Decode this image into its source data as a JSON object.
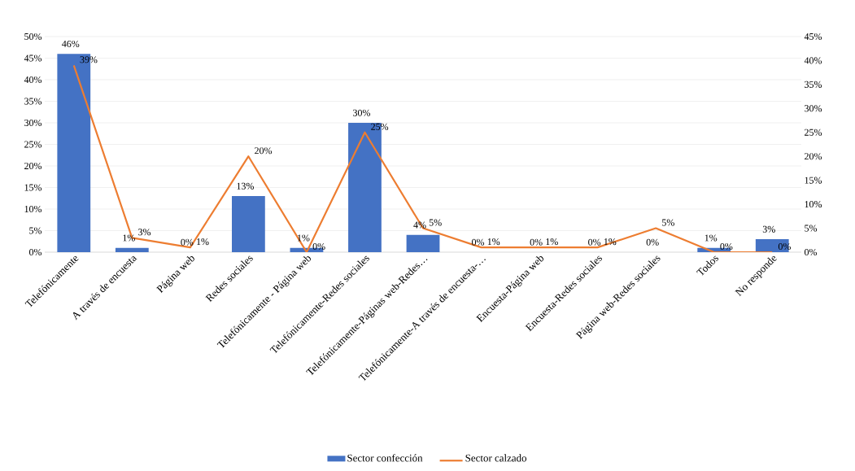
{
  "chart_data": {
    "type": "bar",
    "categories": [
      "Telefónicamente",
      "A través de encuesta",
      "Página web",
      "Redes sociales",
      "Telefónicamente - Página web",
      "Telefónicamente-Redes sociales",
      "Telefónicamente-Páginas web-Redes…",
      "Telefónicamente-A través de encuesta-…",
      "Encuesta-Página web",
      "Encuesta-Redes sociales",
      "Página web-Redes sociales",
      "Todos",
      "No responde"
    ],
    "series": [
      {
        "name": "Sector confección",
        "color": "#4472c4",
        "values": [
          46,
          1,
          0,
          13,
          1,
          30,
          4,
          0,
          0,
          0,
          0,
          1,
          3
        ],
        "value_labels": [
          "46%",
          "1%",
          "0%",
          "13%",
          "1%",
          "30%",
          "4%",
          "0%",
          "0%",
          "0%",
          "0%",
          "1%",
          "3%"
        ]
      },
      {
        "name": "Sector calzado",
        "type": "line",
        "axis": "y2",
        "color": "#ed7d31",
        "values": [
          39,
          3,
          1,
          20,
          0,
          25,
          5,
          1,
          1,
          1,
          5,
          0,
          0
        ],
        "value_labels": [
          "39%",
          "3%",
          "1%",
          "20%",
          "0%",
          "25%",
          "5%",
          "1%",
          "1%",
          "1%",
          "5%",
          "0%",
          "0%"
        ]
      }
    ],
    "ylim": [
      0,
      50
    ],
    "yticks": [
      {
        "value": 0,
        "label": "0%"
      },
      {
        "value": 5,
        "label": "5%"
      },
      {
        "value": 10,
        "label": "10%"
      },
      {
        "value": 15,
        "label": "15%"
      },
      {
        "value": 20,
        "label": "20%"
      },
      {
        "value": 25,
        "label": "25%"
      },
      {
        "value": 30,
        "label": "30%"
      },
      {
        "value": 35,
        "label": "35%"
      },
      {
        "value": 40,
        "label": "40%"
      },
      {
        "value": 45,
        "label": "45%"
      },
      {
        "value": 50,
        "label": "50%"
      }
    ],
    "y2lim": [
      0,
      45
    ],
    "y2ticks": [
      {
        "value": 0,
        "label": "0%"
      },
      {
        "value": 5,
        "label": "5%"
      },
      {
        "value": 10,
        "label": "10%"
      },
      {
        "value": 15,
        "label": "15%"
      },
      {
        "value": 20,
        "label": "20%"
      },
      {
        "value": 25,
        "label": "25%"
      },
      {
        "value": 30,
        "label": "30%"
      },
      {
        "value": 35,
        "label": "35%"
      },
      {
        "value": 40,
        "label": "40%"
      },
      {
        "value": 45,
        "label": "45%"
      }
    ],
    "grid": "y",
    "legend": "bottom"
  }
}
